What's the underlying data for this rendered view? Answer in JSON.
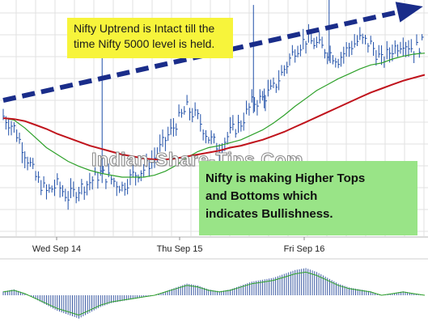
{
  "annotations": {
    "trend_note_line1": "Nifty Uptrend is Intact till the",
    "trend_note_line2": "time Nifty 5000 level is held.",
    "pattern_note_line1": "Nifty is making Higher Tops",
    "pattern_note_line2": "and Bottoms which",
    "pattern_note_line3": "indicates Bullishness."
  },
  "watermark": "Indian-Share-Tips.Com",
  "colors": {
    "price_bars": "#1f4fa8",
    "ma_slow": "#c0131c",
    "ma_fast": "#2ea12a",
    "trend_arrow": "#1a2d8a",
    "histogram": "#3b5aa3",
    "grid": "#e2e2e2",
    "note_yellow": "#f7f43b",
    "note_green": "#99e487"
  },
  "chart_data": {
    "type": "line",
    "x_ticks": [
      "Wed Sep 14",
      "Thu Sep 15",
      "Fri Sep 16"
    ],
    "series": [
      {
        "values": [
          5082,
          5070,
          5045,
          5020,
          5005,
          5012,
          5000,
          5008,
          5015,
          5024,
          5018,
          5010,
          5022,
          5028,
          5040,
          5058,
          5075,
          5090,
          5080,
          5060,
          5050,
          5065,
          5075,
          5095,
          5100,
          5110,
          5130,
          5150,
          5160,
          5155,
          5148,
          5140,
          5152,
          5160,
          5155,
          5138,
          5150,
          5158,
          5150,
          5157
        ]
      },
      {
        "values": [
          5080,
          5078,
          5070,
          5060,
          5050,
          5043,
          5036,
          5031,
          5027,
          5024,
          5022,
          5020,
          5020,
          5020,
          5022,
          5026,
          5032,
          5040,
          5046,
          5050,
          5052,
          5055,
          5058,
          5063,
          5068,
          5075,
          5083,
          5092,
          5100,
          5108,
          5114,
          5120,
          5125,
          5130,
          5134,
          5136,
          5140,
          5143,
          5145,
          5146
        ]
      },
      {
        "values": [
          5080,
          5079,
          5077,
          5073,
          5069,
          5064,
          5060,
          5056,
          5052,
          5049,
          5046,
          5043,
          5041,
          5039,
          5038,
          5038,
          5039,
          5041,
          5043,
          5045,
          5047,
          5050,
          5052,
          5055,
          5058,
          5062,
          5066,
          5071,
          5076,
          5081,
          5086,
          5091,
          5096,
          5101,
          5106,
          5110,
          5114,
          5118,
          5121,
          5124
        ]
      }
    ],
    "ylim": [
      4960,
      5200
    ],
    "histogram": [
      2,
      3,
      1,
      -2,
      -5,
      -8,
      -10,
      -12,
      -9,
      -6,
      -4,
      -3,
      -2,
      -1,
      0,
      2,
      4,
      6,
      5,
      3,
      2,
      3,
      5,
      7,
      8,
      9,
      11,
      13,
      14,
      12,
      9,
      6,
      4,
      3,
      2,
      0,
      1,
      2,
      1,
      0
    ],
    "trend_line": {
      "from": [
        0,
        5098
      ],
      "to": [
        39,
        5192
      ]
    },
    "grid": true
  }
}
